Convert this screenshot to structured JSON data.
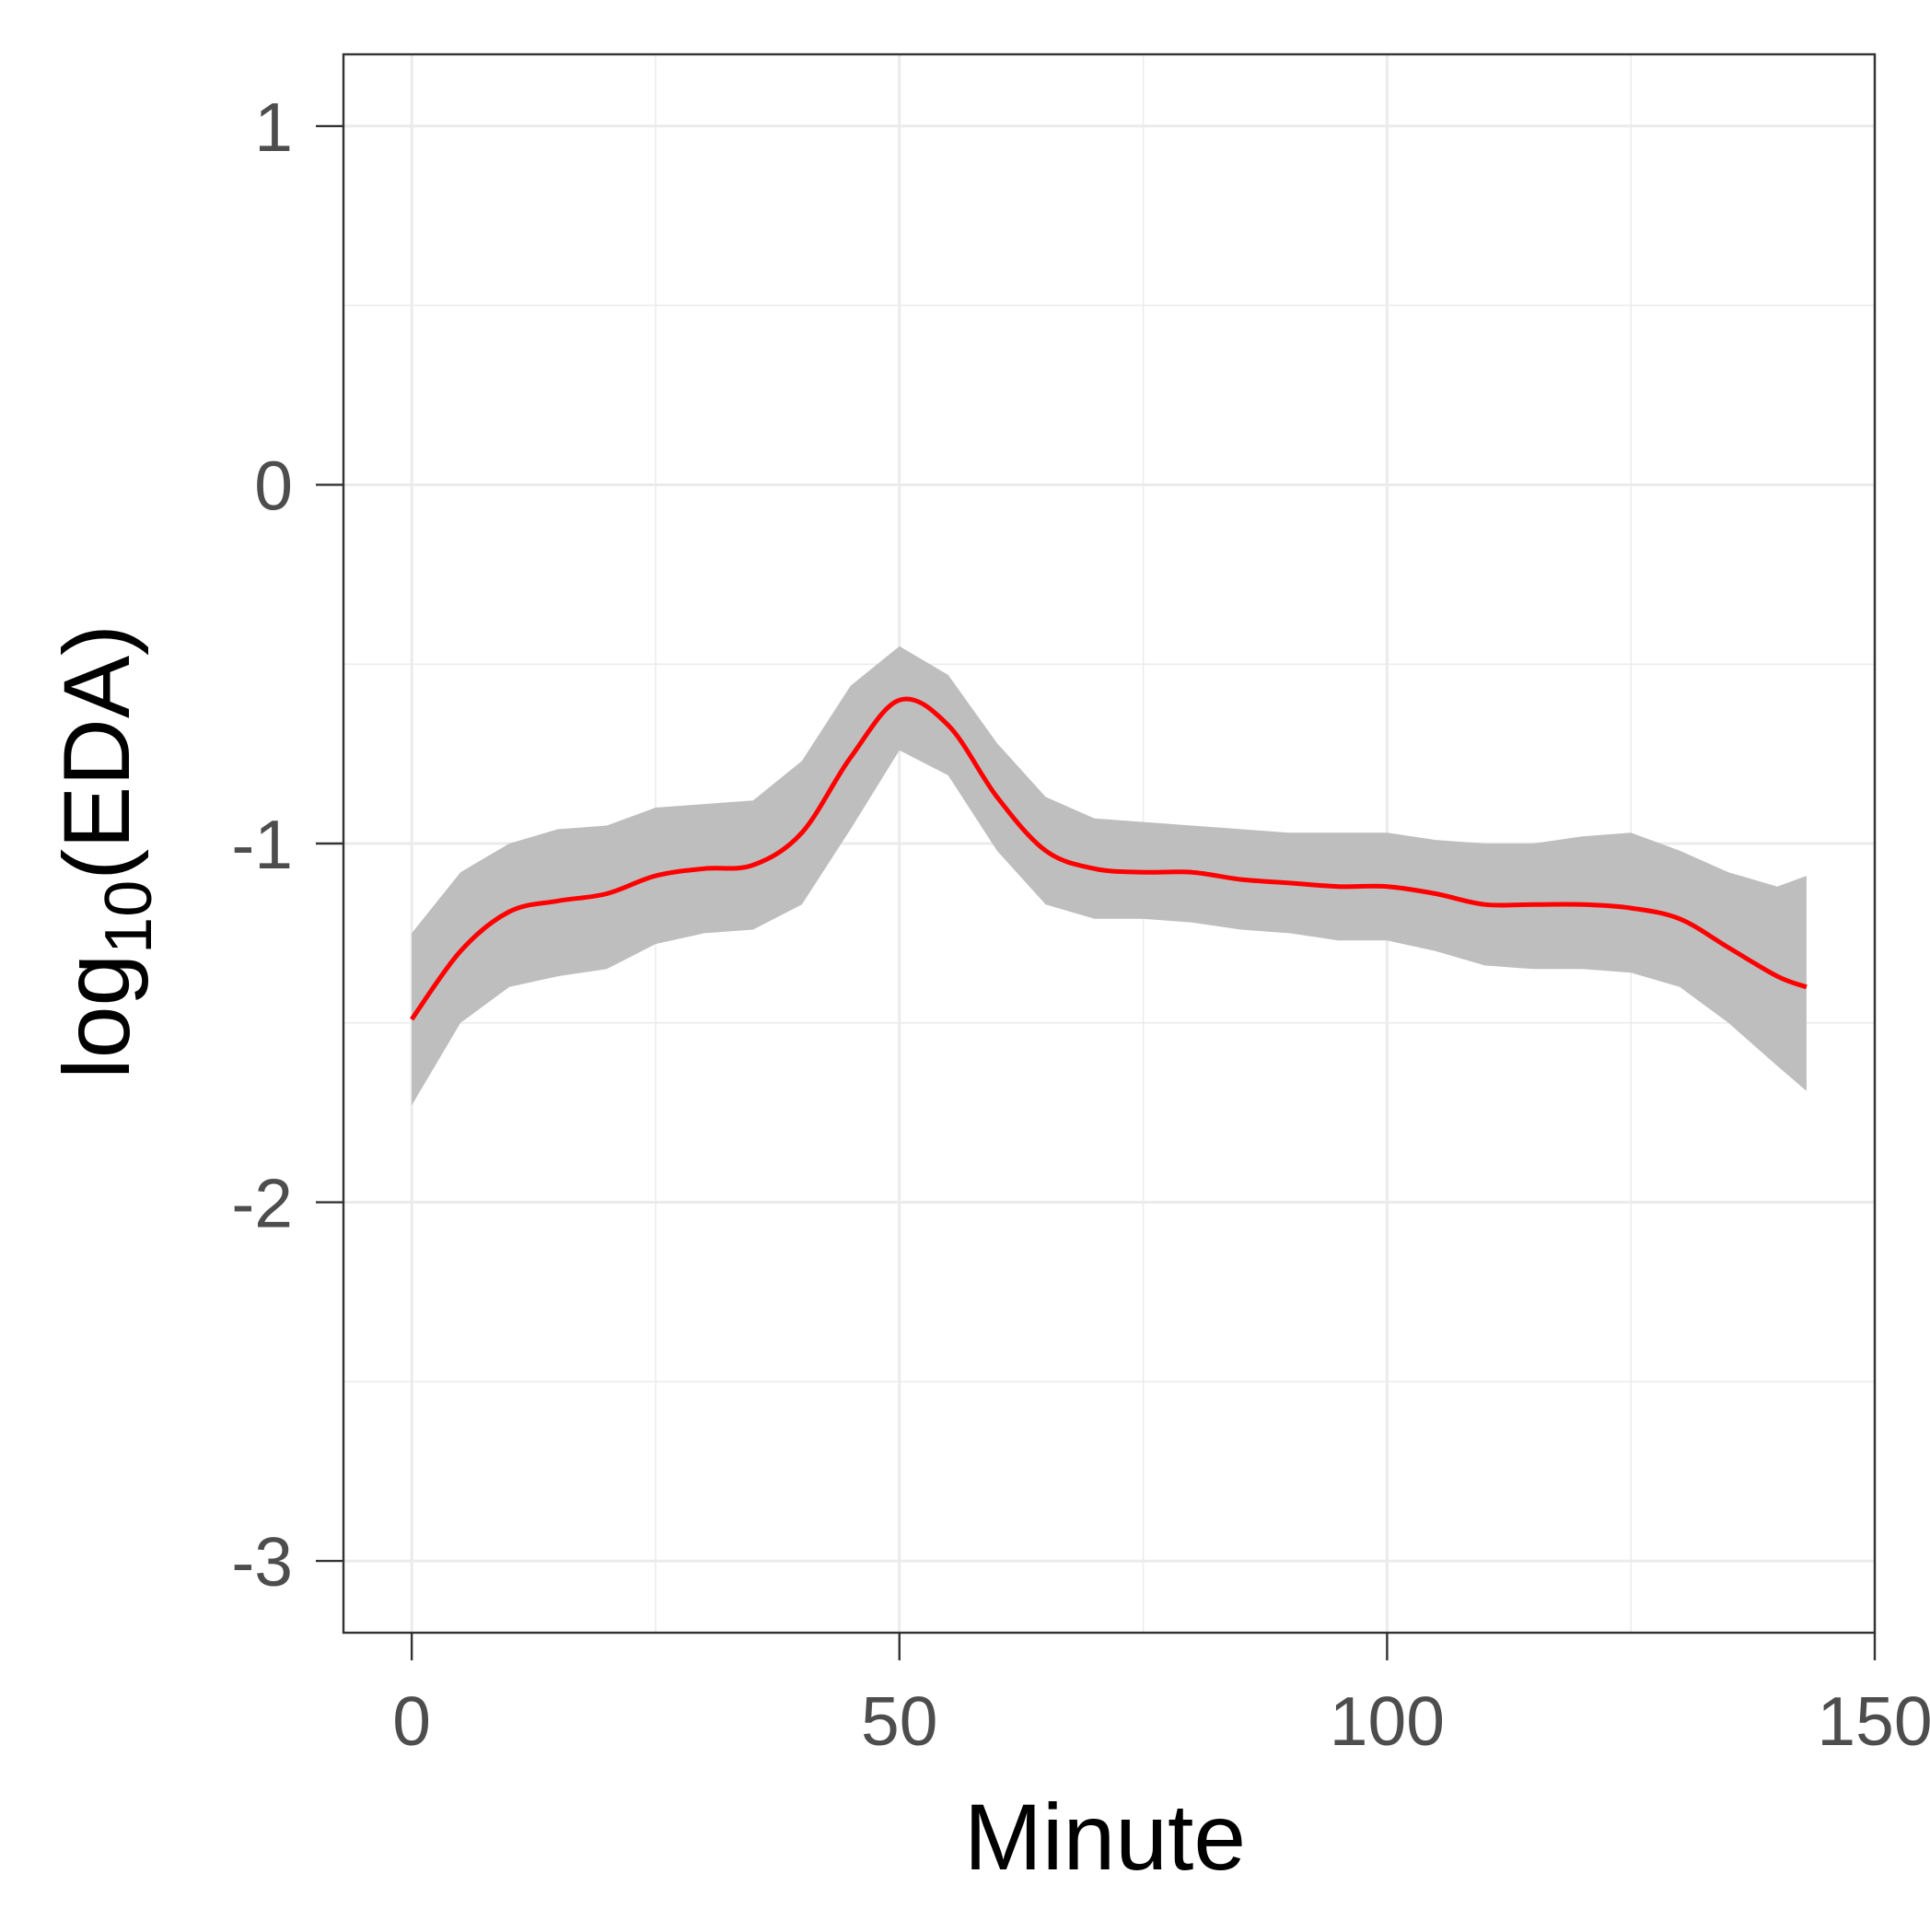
{
  "chart_data": {
    "type": "line",
    "xlabel": "Minute",
    "ylabel": {
      "base": "log",
      "subscript": "10",
      "rest": "(EDA)"
    },
    "xlim": [
      -7,
      150
    ],
    "ylim": [
      -3.2,
      1.2
    ],
    "x_ticks": [
      0,
      50,
      100,
      150
    ],
    "y_ticks": [
      1,
      0,
      -1,
      -2,
      -3
    ],
    "x_tick_labels": [
      "0",
      "50",
      "100",
      "150"
    ],
    "y_tick_labels": [
      "1",
      "0",
      "-1",
      "-2",
      "-3"
    ],
    "grid": true,
    "colors": {
      "line": "#ff0000",
      "band": "#bebebe",
      "grid": "#ebebeb",
      "panel_border": "#333333"
    },
    "series": [
      {
        "x": [
          0,
          5,
          10,
          15,
          20,
          25,
          30,
          35,
          40,
          45,
          50,
          55,
          60,
          65,
          70,
          75,
          80,
          85,
          90,
          95,
          100,
          105,
          110,
          115,
          120,
          125,
          130,
          135,
          140,
          143
        ],
        "y": [
          -1.49,
          -1.3,
          -1.19,
          -1.16,
          -1.14,
          -1.09,
          -1.07,
          -1.06,
          -0.97,
          -0.76,
          -0.6,
          -0.67,
          -0.87,
          -1.02,
          -1.07,
          -1.08,
          -1.08,
          -1.1,
          -1.11,
          -1.12,
          -1.12,
          -1.14,
          -1.17,
          -1.17,
          -1.17,
          -1.18,
          -1.21,
          -1.29,
          -1.37,
          -1.4
        ],
        "lower": [
          -1.73,
          -1.5,
          -1.4,
          -1.37,
          -1.35,
          -1.28,
          -1.25,
          -1.24,
          -1.17,
          -0.96,
          -0.74,
          -0.81,
          -1.02,
          -1.17,
          -1.21,
          -1.21,
          -1.22,
          -1.24,
          -1.25,
          -1.27,
          -1.27,
          -1.3,
          -1.34,
          -1.35,
          -1.35,
          -1.36,
          -1.4,
          -1.5,
          -1.62,
          -1.69
        ],
        "upper": [
          -1.25,
          -1.08,
          -1.0,
          -0.96,
          -0.95,
          -0.9,
          -0.89,
          -0.88,
          -0.77,
          -0.56,
          -0.45,
          -0.53,
          -0.72,
          -0.87,
          -0.93,
          -0.94,
          -0.95,
          -0.96,
          -0.97,
          -0.97,
          -0.97,
          -0.99,
          -1.0,
          -1.0,
          -0.98,
          -0.97,
          -1.02,
          -1.08,
          -1.12,
          -1.09
        ]
      }
    ]
  }
}
